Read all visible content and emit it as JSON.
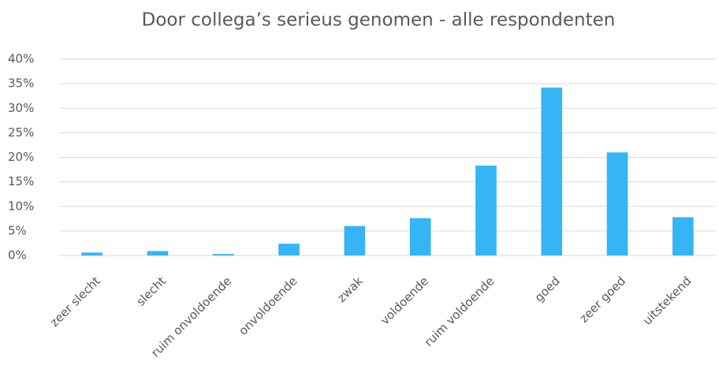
{
  "chart_data": {
    "type": "bar",
    "title": "Door collega’s serieus genomen - alle respondenten",
    "categories": [
      "zeer slecht",
      "slecht",
      "ruim onvoldoende",
      "onvoldoende",
      "zwak",
      "voldoende",
      "ruim voldoende",
      "goed",
      "zeer goed",
      "uitstekend"
    ],
    "values": [
      0.6,
      0.9,
      0.3,
      2.4,
      6.0,
      7.6,
      18.3,
      34.2,
      21.0,
      7.8
    ],
    "color": "#35b5f6",
    "ylim": [
      0,
      40
    ],
    "yticks": [
      {
        "value": 0,
        "label": "0%"
      },
      {
        "value": 5,
        "label": "5%"
      },
      {
        "value": 10,
        "label": "10%"
      },
      {
        "value": 15,
        "label": "15%"
      },
      {
        "value": 20,
        "label": "20%"
      },
      {
        "value": 25,
        "label": "25%"
      },
      {
        "value": 30,
        "label": "30%"
      },
      {
        "value": 35,
        "label": "35%"
      },
      {
        "value": 40,
        "label": "40%"
      }
    ],
    "grid": true
  }
}
